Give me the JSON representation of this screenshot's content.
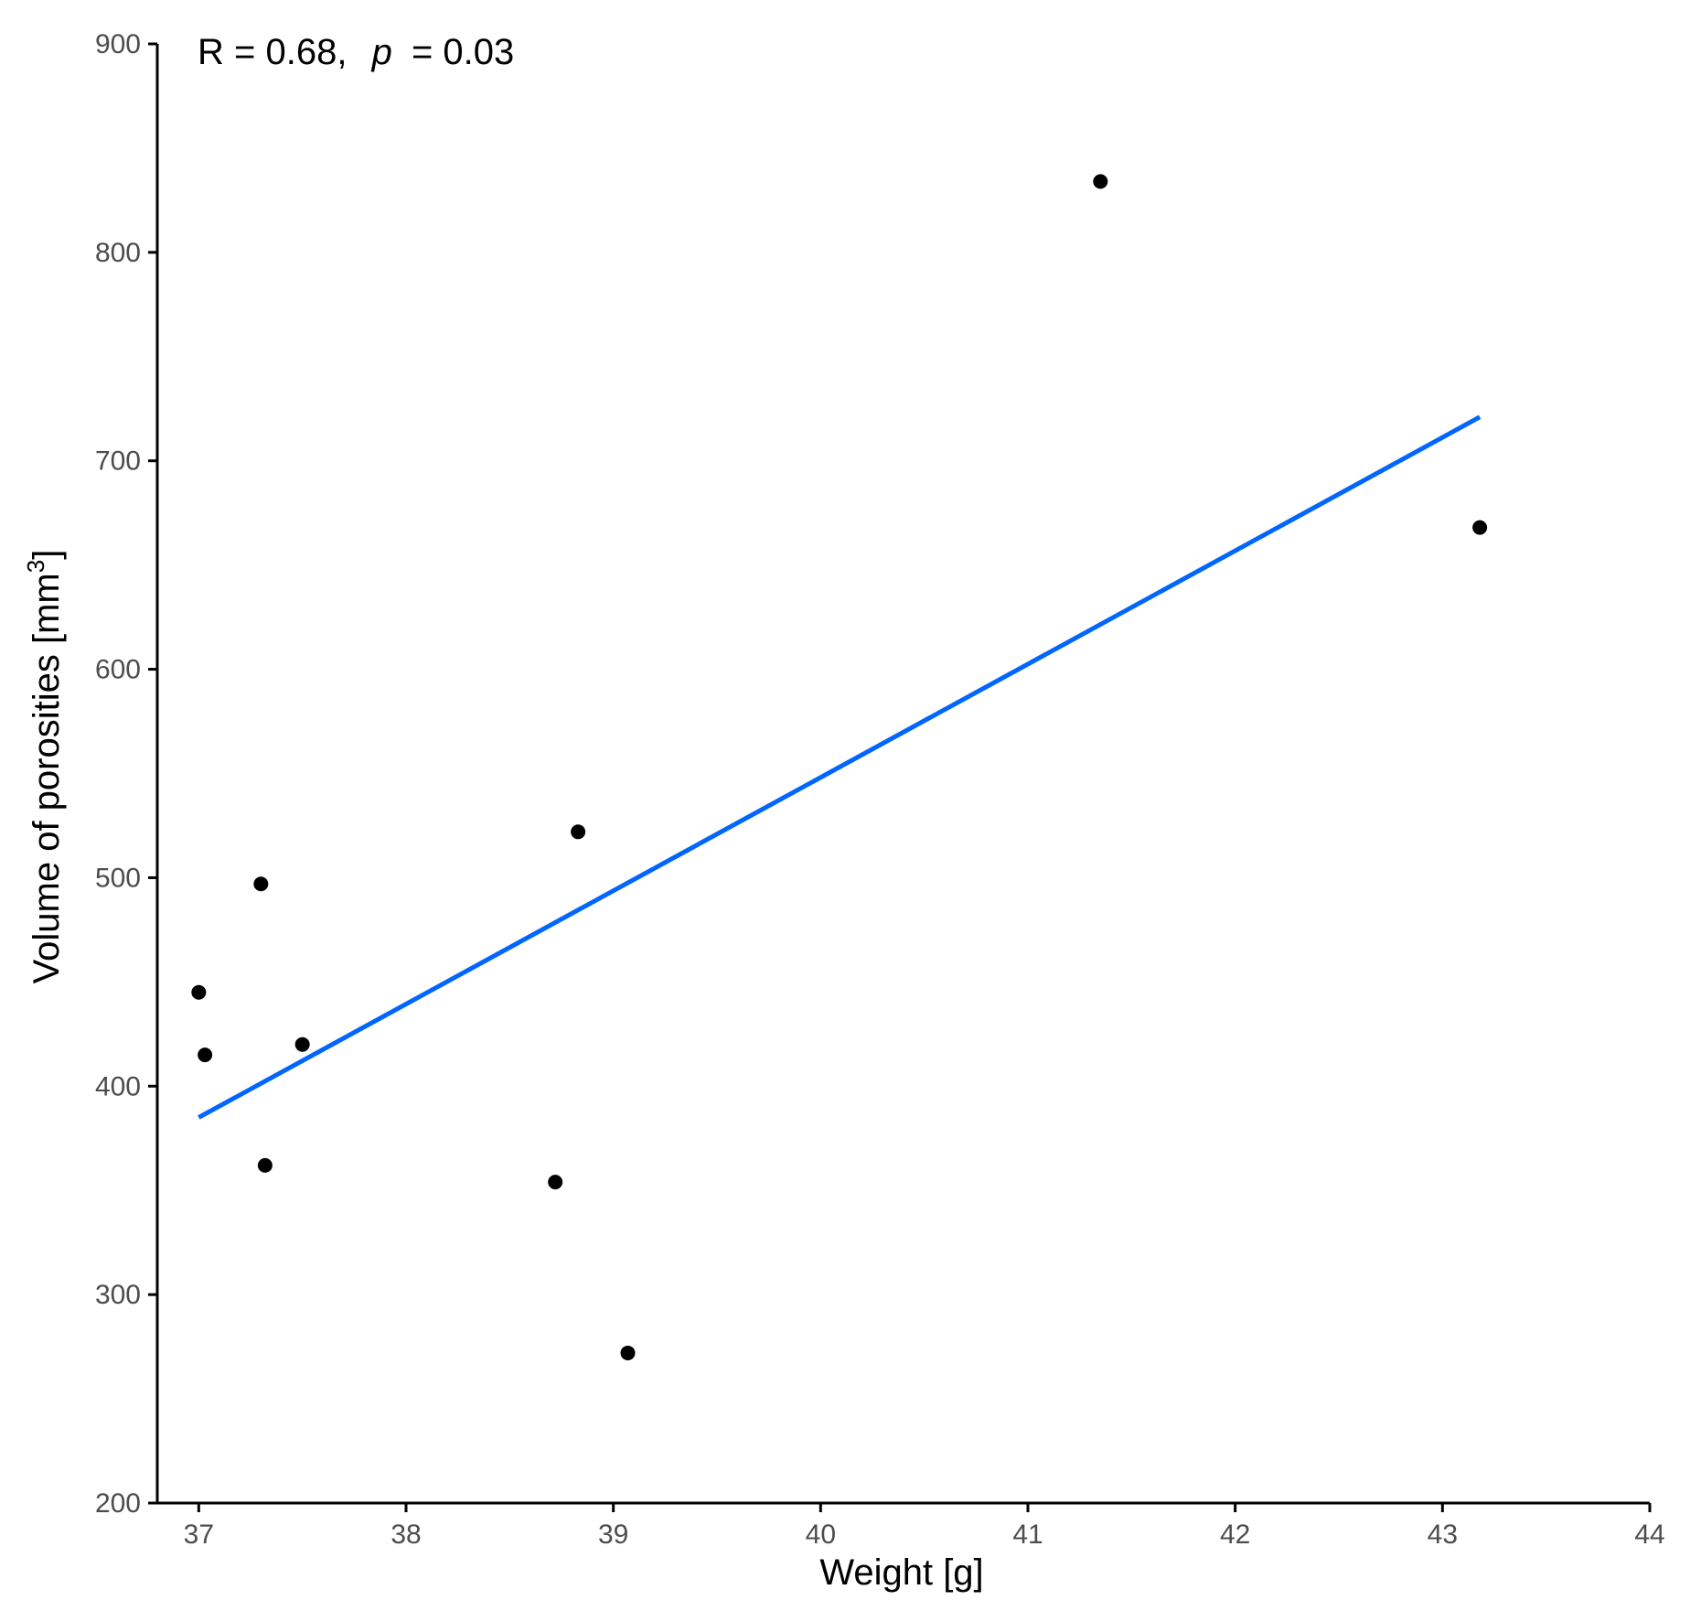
{
  "chart_data": {
    "type": "scatter",
    "title": "",
    "xlabel": "Weight [g]",
    "ylabel": {
      "text": "Volume of porosities [mm",
      "superscript": "3",
      "suffix": "]"
    },
    "xlim": [
      36.8,
      44
    ],
    "ylim": [
      200,
      900
    ],
    "xticks": [
      37,
      38,
      39,
      40,
      41,
      42,
      43,
      44
    ],
    "yticks": [
      200,
      300,
      400,
      500,
      600,
      700,
      800,
      900
    ],
    "grid": false,
    "points": [
      {
        "x": 37.0,
        "y": 445
      },
      {
        "x": 37.03,
        "y": 415
      },
      {
        "x": 37.3,
        "y": 497
      },
      {
        "x": 37.32,
        "y": 362
      },
      {
        "x": 37.5,
        "y": 420
      },
      {
        "x": 38.72,
        "y": 354
      },
      {
        "x": 38.83,
        "y": 522
      },
      {
        "x": 39.07,
        "y": 272
      },
      {
        "x": 41.35,
        "y": 834
      },
      {
        "x": 43.18,
        "y": 668
      }
    ],
    "fit_line": {
      "color": "#0066ff",
      "x": [
        37.0,
        43.18
      ],
      "y": [
        385,
        721
      ]
    },
    "point_color": "#000000",
    "annotation": {
      "r_text": "R = 0.68,",
      "p_symbol": "p",
      "p_text": "= 0.03"
    }
  }
}
